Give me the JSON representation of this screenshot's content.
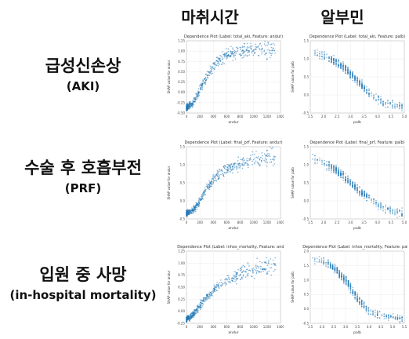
{
  "col_headers": [
    "마취시간",
    "알부민"
  ],
  "row_labels": [
    {
      "ko": "급성신손상",
      "en": "(AKI)"
    },
    {
      "ko": "수술 후 호흡부전",
      "en": "(PRF)"
    },
    {
      "ko": "입원 중 사망",
      "en": "(in-hospital mortality)"
    }
  ],
  "chart_data": [
    {
      "type": "scatter",
      "row": 0,
      "col": 0,
      "title": "Dependence Plot (Label: total_aki, Feature: andur)",
      "xlabel": "andur",
      "ylabel": "SHAP value for andur",
      "xticks": [
        "0",
        "200",
        "400",
        "600",
        "800",
        "1000",
        "1200",
        "1400"
      ],
      "yticks": [
        "-0.50",
        "-0.25",
        "0.00",
        "0.25",
        "0.50",
        "0.75",
        "1.00",
        "1.25"
      ],
      "xlim": [
        0,
        1450
      ],
      "ylim": [
        -0.6,
        1.35
      ],
      "color": "#1f77b4",
      "shape": "rising",
      "trend": {
        "x": [
          0,
          100,
          200,
          300,
          400,
          500,
          600,
          800,
          1000,
          1400
        ],
        "y": [
          -0.45,
          -0.35,
          0.0,
          0.35,
          0.6,
          0.8,
          0.95,
          1.05,
          1.1,
          1.15
        ]
      }
    },
    {
      "type": "scatter",
      "row": 0,
      "col": 1,
      "title": "Dependence Plot (Label: total_aki, Feature: palb)",
      "xlabel": "palb",
      "ylabel": "SHAP value for palb",
      "xticks": [
        "1.5",
        "2.0",
        "2.5",
        "3.0",
        "3.5",
        "4.0",
        "4.5",
        "5.0"
      ],
      "yticks": [
        "-0.5",
        "0.0",
        "0.5",
        "1.0",
        "1.5"
      ],
      "xlim": [
        1.4,
        5.4
      ],
      "ylim": [
        -0.7,
        1.7
      ],
      "color": "#1f77b4",
      "shape": "falling",
      "trend": {
        "x": [
          1.5,
          2.0,
          2.5,
          3.0,
          3.5,
          4.0,
          4.5,
          5.0,
          5.3
        ],
        "y": [
          1.3,
          1.2,
          1.0,
          0.7,
          0.3,
          -0.1,
          -0.35,
          -0.45,
          -0.5
        ]
      }
    },
    {
      "type": "scatter",
      "row": 1,
      "col": 0,
      "title": "Dependence Plot (Label: final_prf, Feature: andur)",
      "xlabel": "andur",
      "ylabel": "SHAP value for andur",
      "xticks": [
        "0",
        "200",
        "400",
        "600",
        "800",
        "1000",
        "1200",
        "1400"
      ],
      "yticks": [
        "-0.5",
        "0.0",
        "0.5",
        "1.0",
        "1.5"
      ],
      "xlim": [
        0,
        1450
      ],
      "ylim": [
        -0.7,
        1.8
      ],
      "color": "#1f77b4",
      "shape": "rising",
      "trend": {
        "x": [
          0,
          100,
          200,
          300,
          400,
          500,
          600,
          800,
          1000,
          1200
        ],
        "y": [
          -0.5,
          -0.4,
          -0.1,
          0.3,
          0.6,
          0.85,
          1.0,
          1.2,
          1.35,
          1.45
        ]
      }
    },
    {
      "type": "scatter",
      "row": 1,
      "col": 1,
      "title": "Dependence Plot (Label: final_prf, Feature: palb)",
      "xlabel": "palb",
      "ylabel": "SHAP value for palb",
      "xticks": [
        "1.5",
        "2.0",
        "2.5",
        "3.0",
        "3.5",
        "4.0",
        "4.5",
        "5.0"
      ],
      "yticks": [
        "-0.5",
        "0.0",
        "0.5",
        "1.0",
        "1.5"
      ],
      "xlim": [
        1.4,
        5.4
      ],
      "ylim": [
        -0.7,
        1.9
      ],
      "color": "#1f77b4",
      "shape": "falling",
      "trend": {
        "x": [
          1.5,
          2.0,
          2.5,
          3.0,
          3.5,
          4.0,
          4.5,
          5.0,
          5.3
        ],
        "y": [
          1.5,
          1.3,
          1.05,
          0.7,
          0.3,
          0.0,
          -0.3,
          -0.45,
          -0.5
        ]
      }
    },
    {
      "type": "scatter",
      "row": 2,
      "col": 0,
      "title": "Dependence Plot (Label: inhos_mortality, Feature: andur)",
      "xlabel": "andur",
      "ylabel": "SHAP value for andur",
      "xticks": [
        "0",
        "200",
        "400",
        "600",
        "800",
        "1000",
        "1200",
        "1400"
      ],
      "yticks": [
        "-0.25",
        "0.00",
        "0.25",
        "0.50",
        "0.75",
        "1.00",
        "1.25"
      ],
      "xlim": [
        0,
        1450
      ],
      "ylim": [
        -0.35,
        1.35
      ],
      "color": "#1f77b4",
      "shape": "rising",
      "trend": {
        "x": [
          0,
          100,
          200,
          300,
          400,
          500,
          600,
          800,
          1000,
          1200
        ],
        "y": [
          -0.25,
          -0.15,
          0.05,
          0.25,
          0.4,
          0.55,
          0.65,
          0.8,
          0.9,
          1.0
        ]
      }
    },
    {
      "type": "scatter",
      "row": 2,
      "col": 1,
      "title": "Dependence Plot (Label: inhos_mortality, Feature: palb)",
      "xlabel": "palb",
      "ylabel": "SHAP value for palb",
      "xticks": [
        "1.5",
        "2.0",
        "2.5",
        "3.0",
        "3.5",
        "4.0",
        "4.5",
        "5.0",
        "5.5"
      ],
      "yticks": [
        "-0.5",
        "0.0",
        "0.5",
        "1.0",
        "1.5",
        "2.0"
      ],
      "xlim": [
        1.4,
        5.6
      ],
      "ylim": [
        -0.7,
        2.2
      ],
      "color": "#1f77b4",
      "shape": "falling",
      "trend": {
        "x": [
          1.5,
          2.0,
          2.5,
          3.0,
          3.5,
          4.0,
          4.5,
          5.0,
          5.5
        ],
        "y": [
          1.9,
          1.8,
          1.5,
          1.0,
          0.3,
          -0.2,
          -0.4,
          -0.45,
          -0.5
        ]
      }
    }
  ]
}
